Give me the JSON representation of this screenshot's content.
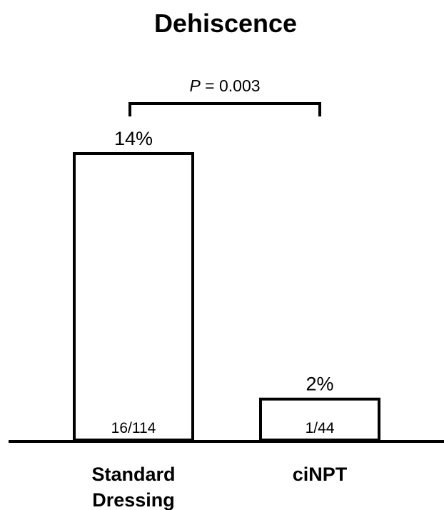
{
  "chart_data": {
    "type": "bar",
    "title": "Dehiscence",
    "categories": [
      [
        "Standard",
        "Dressing"
      ],
      [
        "ciNPT"
      ]
    ],
    "values": [
      14,
      2
    ],
    "value_labels": [
      "14%",
      "2%"
    ],
    "counts": [
      "16/114",
      "1/44"
    ],
    "unit": "%",
    "ylim": [
      0,
      14
    ],
    "grid": false,
    "bar_fill": "#ffffff",
    "bar_edge": "#000000",
    "comparison": {
      "between": [
        0,
        1
      ],
      "p_label": "P",
      "p_value_text": " = 0.003"
    }
  }
}
